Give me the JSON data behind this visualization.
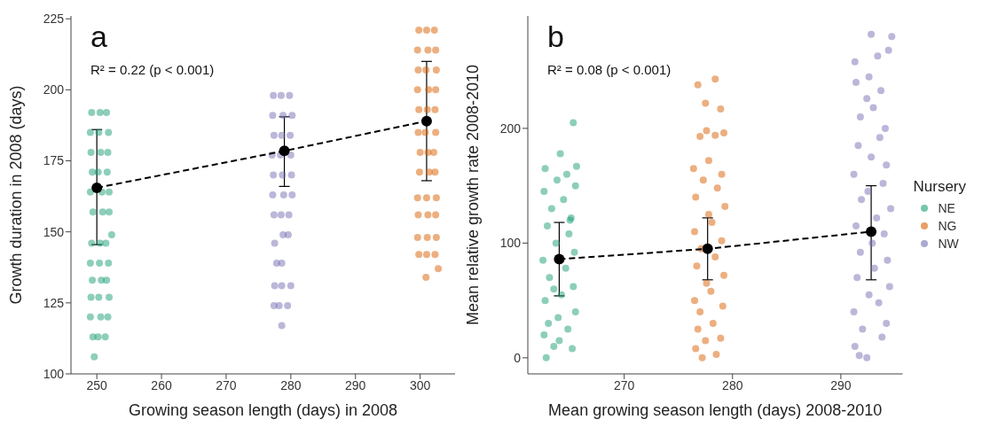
{
  "chart_data": [
    {
      "type": "scatter",
      "xlabel": "Growing season length (days) in 2008",
      "ylabel": "Growth duration in 2008 (days)",
      "xlim": [
        246,
        305.4
      ],
      "ylim": [
        100,
        226
      ],
      "xticks": [
        250,
        260,
        270,
        280,
        290,
        300
      ],
      "yticks": [
        100,
        125,
        150,
        175,
        200,
        225
      ],
      "marker": "circle",
      "annotations": [
        "a",
        "R² = 0.22 (p < 0.001)"
      ],
      "series": [
        {
          "color": "#1b9e77",
          "x": [
            249.2,
            250.5,
            251.5,
            249.0,
            250.3,
            251.8,
            249.1,
            250.6,
            251.7,
            249.3,
            250.2,
            251.6,
            249.0,
            250.8,
            251.9,
            249.4,
            250.9,
            251.9,
            252.3,
            249.2,
            250.5,
            251.4,
            249.0,
            250.4,
            251.8,
            249.3,
            250.7,
            251.5,
            249.1,
            250.3,
            251.9,
            249.0,
            250.6,
            251.7,
            249.4,
            250.2,
            251.3,
            249.6
          ],
          "values": [
            192,
            192,
            192,
            185,
            185,
            185,
            178,
            178,
            178,
            171,
            171,
            171,
            164,
            164,
            164,
            157,
            157,
            157,
            149,
            146,
            146,
            146,
            139,
            139,
            139,
            133,
            133,
            133,
            127,
            127,
            127,
            120,
            120,
            120,
            113,
            113,
            113,
            106
          ]
        },
        {
          "color": "#7570b3",
          "x": [
            277.3,
            278.5,
            279.8,
            277.2,
            278.8,
            280.2,
            277.4,
            278.6,
            279.9,
            277.1,
            278.4,
            280.0,
            277.3,
            278.7,
            280.1,
            277.2,
            278.9,
            280.2,
            277.4,
            278.5,
            279.7,
            278.8,
            279.6,
            277.5,
            277.8,
            278.6,
            277.5,
            278.6,
            280.0,
            277.4,
            278.2,
            279.5,
            278.6
          ],
          "values": [
            198,
            198,
            198,
            191,
            191,
            191,
            184,
            184,
            184,
            177,
            177,
            177,
            170,
            170,
            170,
            163,
            163,
            163,
            156,
            156,
            156,
            149,
            149,
            146,
            139,
            139,
            131,
            131,
            131,
            124,
            124,
            124,
            117
          ]
        },
        {
          "color": "#d95f02",
          "x": [
            299.8,
            301.0,
            302.2,
            299.6,
            301.2,
            302.4,
            299.7,
            300.9,
            302.5,
            299.6,
            301.3,
            302.4,
            299.8,
            301.1,
            302.3,
            299.7,
            300.8,
            302.4,
            300.0,
            301.2,
            302.1,
            299.9,
            301.4,
            302.3,
            299.6,
            301.0,
            302.5,
            299.7,
            301.2,
            302.4,
            299.6,
            301.1,
            302.5,
            299.8,
            301.0,
            302.3,
            302.8,
            300.9
          ],
          "values": [
            221,
            221,
            221,
            214,
            214,
            214,
            207,
            207,
            207,
            200,
            200,
            200,
            193,
            193,
            193,
            185,
            185,
            185,
            178,
            178,
            178,
            171,
            171,
            171,
            162,
            162,
            162,
            156,
            156,
            156,
            148,
            148,
            148,
            142,
            142,
            142,
            137,
            134
          ]
        },
        {
          "type": "line",
          "color": "#000000",
          "line_style": "dashed",
          "x": [
            250,
            279,
            301
          ],
          "values": [
            165.5,
            178.5,
            189
          ],
          "errors": [
            [
              145.5,
              186
            ],
            [
              166,
              190.5
            ],
            [
              168,
              210
            ]
          ]
        }
      ]
    },
    {
      "type": "scatter",
      "xlabel": "Mean growing season length (days) 2008-2010",
      "ylabel": "Mean relative growth rate 2008-2010",
      "xlim": [
        261.1,
        295.7
      ],
      "ylim": [
        -14,
        298
      ],
      "xticks": [
        270,
        280,
        290
      ],
      "yticks": [
        0,
        100,
        200
      ],
      "marker": "circle",
      "legend": "right",
      "legend_title": "Nursery",
      "annotations": [
        "b",
        "R² = 0.08 (p < 0.001)"
      ],
      "series": [
        {
          "name": "NE",
          "color": "#1b9e77",
          "x": [
            262.8,
            263.5,
            265.2,
            262.6,
            264.8,
            263.9,
            265.5,
            262.7,
            264.2,
            265.3,
            263.1,
            264.6,
            262.5,
            265.4,
            263.7,
            264.9,
            262.9,
            265.1,
            263.3,
            264.4,
            262.6,
            265.5,
            263.8,
            264.7,
            262.7,
            265.6,
            264.1,
            265.3,
            263.0,
            264.0,
            265.0,
            263.5
          ],
          "values": [
            0,
            10,
            8,
            20,
            25,
            35,
            40,
            50,
            55,
            62,
            70,
            78,
            85,
            92,
            100,
            108,
            115,
            122,
            130,
            138,
            145,
            150,
            155,
            160,
            165,
            167,
            178,
            205,
            30,
            15,
            120,
            60
          ]
        },
        {
          "name": "NG",
          "color": "#d95f02",
          "x": [
            277.2,
            276.6,
            278.5,
            277.5,
            278.9,
            276.8,
            278.2,
            277.0,
            279.1,
            276.5,
            278.0,
            277.6,
            279.2,
            276.7,
            278.4,
            277.1,
            279.0,
            276.5,
            278.1,
            277.8,
            279.3,
            276.6,
            278.6,
            277.3,
            279.0,
            276.4,
            277.8,
            277.0,
            277.6,
            278.4,
            279.2,
            277.5,
            278.9,
            276.8,
            278.4
          ],
          "values": [
            0,
            8,
            3,
            15,
            17,
            25,
            30,
            40,
            45,
            50,
            58,
            65,
            72,
            80,
            88,
            95,
            102,
            110,
            118,
            125,
            132,
            140,
            148,
            155,
            160,
            165,
            172,
            193,
            198,
            194,
            196,
            222,
            217,
            238,
            243
          ]
        },
        {
          "name": "NW",
          "color": "#7570b3",
          "x": [
            291.7,
            292.4,
            291.3,
            293.8,
            292.0,
            294.2,
            291.2,
            293.5,
            292.6,
            294.5,
            291.5,
            293.1,
            294.3,
            291.8,
            292.9,
            294.0,
            291.4,
            293.3,
            294.6,
            291.9,
            292.5,
            293.9,
            291.2,
            294.2,
            292.8,
            291.6,
            293.6,
            294.1,
            291.8,
            293.0,
            292.4,
            293.7,
            291.4,
            292.6,
            291.3,
            293.4,
            294.4,
            292.8,
            294.7
          ],
          "values": [
            2,
            0,
            10,
            18,
            25,
            30,
            40,
            48,
            55,
            62,
            70,
            78,
            85,
            92,
            100,
            108,
            115,
            122,
            130,
            138,
            145,
            152,
            160,
            168,
            175,
            185,
            192,
            200,
            210,
            218,
            226,
            233,
            240,
            245,
            258,
            263,
            268,
            282,
            280
          ]
        },
        {
          "type": "line",
          "color": "#000000",
          "line_style": "dashed",
          "x": [
            264,
            277.7,
            292.8
          ],
          "values": [
            86,
            95,
            110
          ],
          "errors": [
            [
              54,
              118
            ],
            [
              68,
              122
            ],
            [
              68,
              150
            ]
          ]
        }
      ]
    }
  ]
}
